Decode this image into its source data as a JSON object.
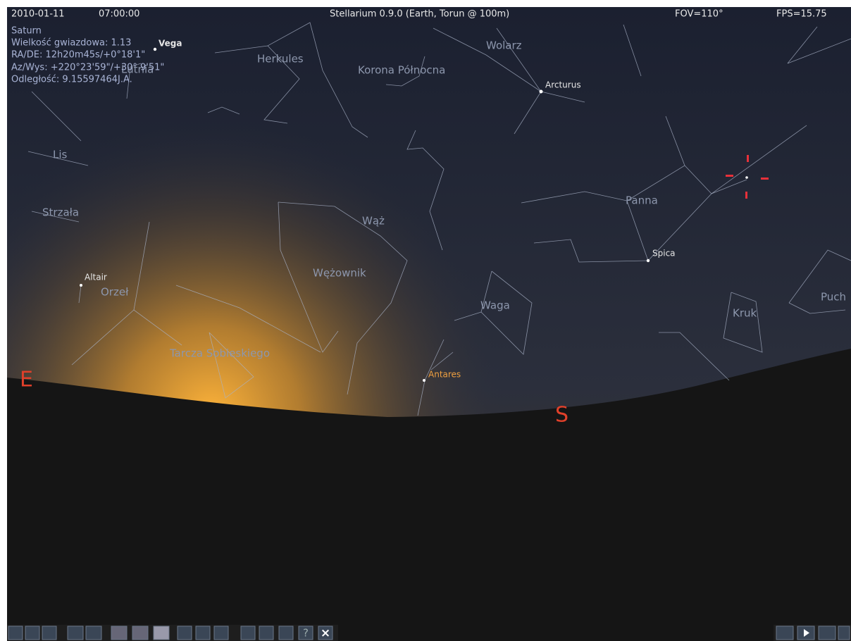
{
  "status_bar": {
    "date": "2010-01-11",
    "time": "07:00:00",
    "title": "Stellarium 0.9.0 (Earth, Torun @ 100m)",
    "fov": "FOV=110°",
    "fps": "FPS=15.75"
  },
  "object_info": {
    "name": "Saturn",
    "magnitude": "Wielkość gwiazdowa: 1.13",
    "ra_dec": "RA/DE: 12h20m45s/+0°18'1\"",
    "az_alt": "Az/Wys: +220°23'59\"/+30° 9'51\"",
    "distance": "Odległość: 9.15597464J.A."
  },
  "constellations": [
    "Herkules",
    "Korona Północna",
    "Wolarz",
    "Lis",
    "Strzała",
    "Wąż",
    "Wężownik",
    "Panna",
    "Orzeł",
    "Waga",
    "Kruk",
    "Tarcza Sobieskiego",
    "Puch",
    "Lutnia"
  ],
  "stars": [
    "Vega",
    "Arcturus",
    "Spica",
    "Altair",
    "Antares"
  ],
  "cardinals": [
    "E",
    "S"
  ],
  "toolbar": {
    "help": "?",
    "close": "×"
  }
}
